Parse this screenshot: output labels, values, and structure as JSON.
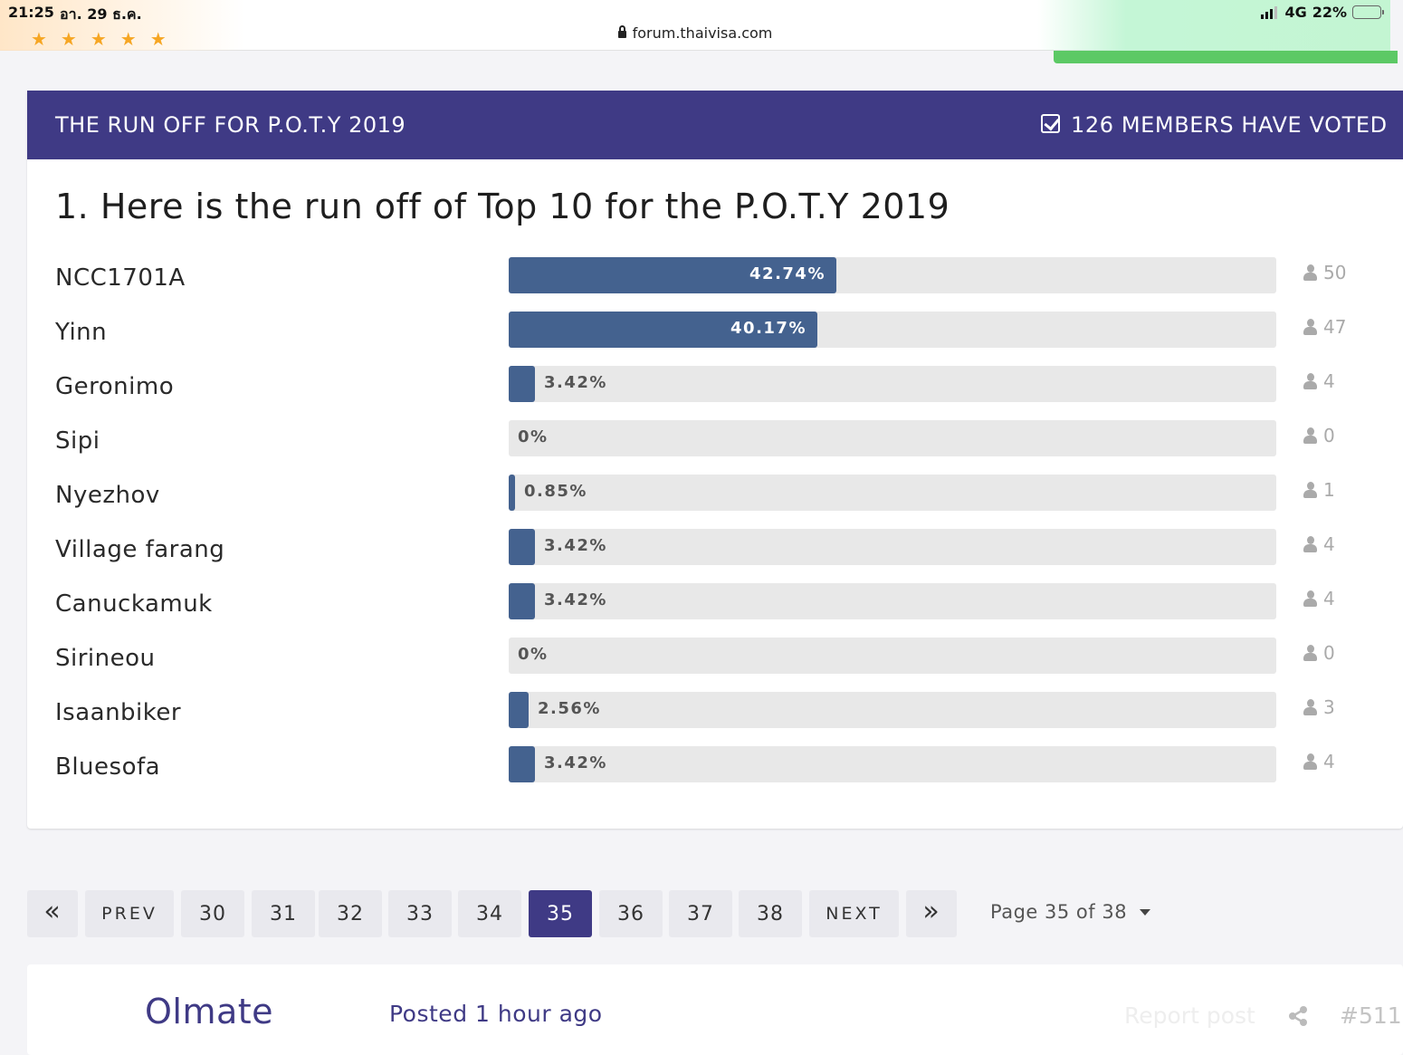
{
  "status_bar": {
    "time": "21:25",
    "date": "อา. 29 ธ.ค.",
    "url": "forum.thaivisa.com",
    "network": "4G",
    "battery": "22%",
    "battery_level": 0.22
  },
  "poll": {
    "title": "THE RUN OFF FOR P.O.T.Y 2019",
    "voted_text": "126 MEMBERS HAVE VOTED",
    "question": "1. Here is the run off of Top 10 for the P.O.T.Y 2019",
    "bar_color": "#44628f",
    "header_color": "#3f3a85",
    "options": [
      {
        "label": "NCC1701A",
        "percent_text": "42.74%",
        "percent": 42.74,
        "votes": "50"
      },
      {
        "label": "Yinn",
        "percent_text": "40.17%",
        "percent": 40.17,
        "votes": "47"
      },
      {
        "label": "Geronimo",
        "percent_text": "3.42%",
        "percent": 3.42,
        "votes": "4"
      },
      {
        "label": "Sipi",
        "percent_text": "0%",
        "percent": 0,
        "votes": "0"
      },
      {
        "label": "Nyezhov",
        "percent_text": "0.85%",
        "percent": 0.85,
        "votes": "1"
      },
      {
        "label": "Village farang",
        "percent_text": "3.42%",
        "percent": 3.42,
        "votes": "4"
      },
      {
        "label": "Canuckamuk",
        "percent_text": "3.42%",
        "percent": 3.42,
        "votes": "4"
      },
      {
        "label": "Sirineou",
        "percent_text": "0%",
        "percent": 0,
        "votes": "0"
      },
      {
        "label": "Isaanbiker",
        "percent_text": "2.56%",
        "percent": 2.56,
        "votes": "3"
      },
      {
        "label": "Bluesofa",
        "percent_text": "3.42%",
        "percent": 3.42,
        "votes": "4"
      }
    ]
  },
  "pagination": {
    "first_icon": "double-chevron-left-icon",
    "prev": "PREV",
    "pages": [
      "30",
      "31",
      "32",
      "33",
      "34",
      "35",
      "36",
      "37",
      "38"
    ],
    "current": "35",
    "next": "NEXT",
    "last_icon": "double-chevron-right-icon",
    "page_of": "Page 35 of 38"
  },
  "post": {
    "author": "Olmate",
    "posted": "Posted 1 hour ago",
    "report": "Report post",
    "number": "#511"
  }
}
